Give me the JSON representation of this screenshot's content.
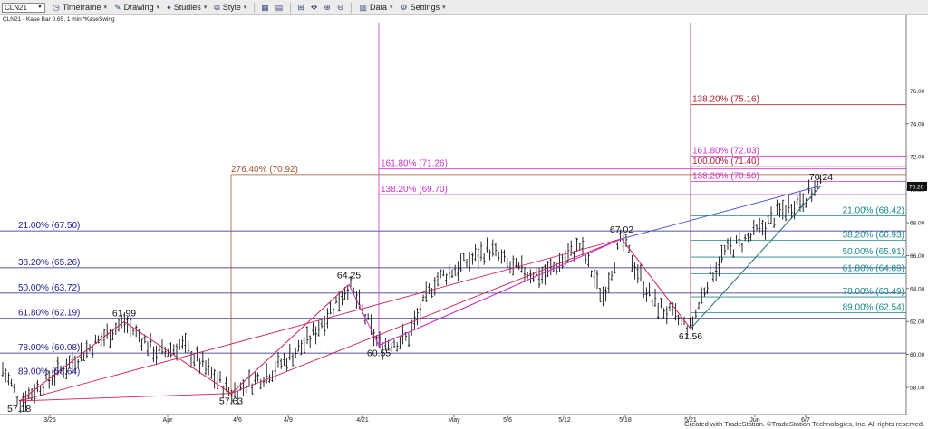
{
  "toolbar": {
    "symbol": "CLN21",
    "items": [
      {
        "label": "Timeframe",
        "icon": "clock-icon"
      },
      {
        "label": "Drawing",
        "icon": "pencil-icon"
      },
      {
        "label": "Studies",
        "icon": "studies-icon"
      },
      {
        "label": "Style",
        "icon": "style-icon"
      }
    ],
    "data_label": "Data",
    "settings_label": "Settings"
  },
  "chart_info": "CLN21 - Kase Bar 0.65, 1 min  *KaseSwing",
  "credit": "Created with TradeStation. ©TradeStation Technologies, Inc. All rights reserved.",
  "colors": {
    "bars": "#111111",
    "blue_levels": "#1c1c8c",
    "teal_levels": "#1a8a8a",
    "magenta": "#cc33cc",
    "red": "#b22234",
    "brown": "#a0522d",
    "swing": "#cc2255"
  },
  "chart_data": {
    "type": "ohlc",
    "ylim": [
      56,
      76.5
    ],
    "y_ticks": [
      58,
      60,
      62,
      64,
      66,
      68,
      70,
      72,
      74,
      76
    ],
    "y_tick_labels": [
      "58.00",
      "60.00",
      "62.00",
      "64.00",
      "66.00",
      "68.00",
      "70.00",
      "72.00",
      "74.00",
      "76.00"
    ],
    "last_price": "70.20",
    "x_ticks": [
      "3/25",
      "Apr",
      "4/6",
      "4/9",
      "4/21",
      "May",
      "5/6",
      "5/12",
      "5/18",
      "5/21",
      "Jun",
      "6/7"
    ],
    "swing_points": [
      {
        "label": "57.18",
        "value": 57.18
      },
      {
        "label": "61.99",
        "value": 61.99
      },
      {
        "label": "57.63",
        "value": 57.63
      },
      {
        "label": "64.25",
        "value": 64.25
      },
      {
        "label": "60.55",
        "value": 60.55
      },
      {
        "label": "67.02",
        "value": 67.02
      },
      {
        "label": "61.56",
        "value": 61.56
      },
      {
        "label": "70.24",
        "value": 70.24
      }
    ],
    "retracements_left": [
      {
        "label": "21.00% (67.50)",
        "value": 67.5
      },
      {
        "label": "38.20% (65.26)",
        "value": 65.26
      },
      {
        "label": "50.00% (63.72)",
        "value": 63.72
      },
      {
        "label": "61.80% (62.19)",
        "value": 62.19
      },
      {
        "label": "78.00% (60.08)",
        "value": 60.08
      },
      {
        "label": "89.00% (58.64)",
        "value": 58.64
      }
    ],
    "retracements_right": [
      {
        "label": "21.00% (68.42)",
        "value": 68.42
      },
      {
        "label": "38.20% (66.93)",
        "value": 66.93
      },
      {
        "label": "50.00% (65.91)",
        "value": 65.91
      },
      {
        "label": "61.80% (64.89)",
        "value": 64.89
      },
      {
        "label": "78.00% (63.49)",
        "value": 63.49
      },
      {
        "label": "89.00% (62.54)",
        "value": 62.54
      }
    ],
    "extensions": [
      {
        "label": "276.40% (70.92)",
        "value": 70.92,
        "group": "brown"
      },
      {
        "label": "161.80% (71.26)",
        "value": 71.26,
        "group": "magenta"
      },
      {
        "label": "138.20% (69.70)",
        "value": 69.7,
        "group": "magenta"
      },
      {
        "label": "138.20% (75.16)",
        "value": 75.16,
        "group": "red"
      },
      {
        "label": "161.80% (72.03)",
        "value": 72.03,
        "group": "magenta2"
      },
      {
        "label": "100.00% (71.40)",
        "value": 71.4,
        "group": "red"
      },
      {
        "label": "138.20% (70.50)",
        "value": 70.5,
        "group": "magenta2"
      }
    ]
  }
}
